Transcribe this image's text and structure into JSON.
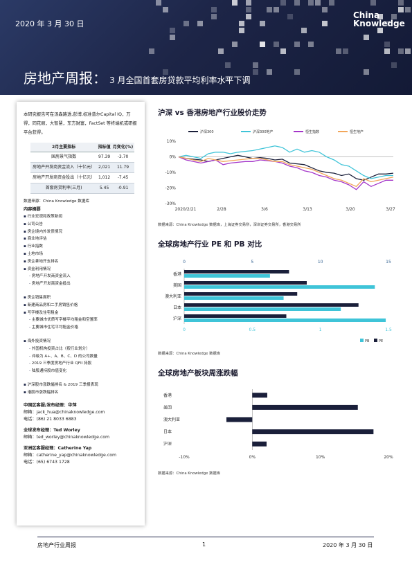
{
  "banner": {
    "date": "2020 年 3 月 30 日",
    "logo_line1": "China",
    "logo_line2": "Knowledge",
    "title_main": "房地产周报：",
    "title_sub": "3 月全国首套房贷款平均利率水平下调"
  },
  "sidebar": {
    "intro": "本研究报告可在汤森路透,彭博,标准普尔Capital IQ，万得，同花顺，大智慧，东方财富，FactSet 等终端机或研报平台获得。",
    "table": {
      "headers": [
        "2月主要指标",
        "指标值",
        "月变化(%)"
      ],
      "rows": [
        [
          "国房景气指数",
          "97.39",
          "-3.70"
        ],
        [
          "房地产开发商资金流入（十亿元）",
          "2,021",
          "11.79"
        ],
        [
          "房地产开发商资金投出（十亿元）",
          "1,012",
          "-7.45"
        ],
        [
          "首套房贷利率(三月)",
          "5.45",
          "-0.91"
        ]
      ]
    },
    "source": "数据来源：China Knowledge 数据库",
    "toc_title": "内容摘要",
    "toc": [
      {
        "text": "行业宏观和政策新闻",
        "type": "main"
      },
      {
        "text": "公司公告",
        "type": "main"
      },
      {
        "text": "房企境内外发债情况",
        "type": "main"
      },
      {
        "text": "商业地评估",
        "type": "main"
      },
      {
        "text": "行业指数",
        "type": "main"
      },
      {
        "text": "土地市场",
        "type": "main"
      },
      {
        "text": "房企拿地开支排名",
        "type": "main"
      },
      {
        "text": "资金利用情况",
        "type": "main"
      },
      {
        "text": "房地产开发商资金流入",
        "type": "sub"
      },
      {
        "text": "房地产开发商资金投出",
        "type": "sub"
      },
      {
        "text": "房企销售面积",
        "type": "main gap"
      },
      {
        "text": "新建商品房和二手房销售价格",
        "type": "main"
      },
      {
        "text": "写字楼及住宅租金",
        "type": "main"
      },
      {
        "text": "主要城市优质写字楼平均租金和空置率",
        "type": "sub"
      },
      {
        "text": "主要城市住宅平均租金价格",
        "type": "sub"
      },
      {
        "text": "海外投资情况",
        "type": "main gap"
      },
      {
        "text": "外国机构投资占比（按行业划分）",
        "type": "sub"
      },
      {
        "text": "评级为 A+、A、B、C、D 的公司数量",
        "type": "sub"
      },
      {
        "text": "2019 三季度房地产行业 QFII 持股",
        "type": "sub"
      },
      {
        "text": "陆股通持股市值变化",
        "type": "sub"
      },
      {
        "text": "沪深股市涨跌幅排名 & 2019 三季报表现",
        "type": "main gap"
      },
      {
        "text": "港股市涨跌幅排名",
        "type": "main"
      }
    ],
    "contacts": [
      {
        "title": "中国区客服/发布经理：华萍",
        "lines": [
          "邮箱：jack_hua@chinaknowledge.com",
          "电话：(86) 21 8033 6883"
        ]
      },
      {
        "title": "全球发布经理：Ted Worley",
        "lines": [
          "邮箱：ted_worley@chinaknowledge.com"
        ]
      },
      {
        "title": "亚洲区客服经理：Catherine Yap",
        "lines": [
          "邮箱：catherine_yap@chinaknowledge.com",
          "电话：(65) 6743 1728"
        ]
      }
    ]
  },
  "section1": {
    "title": "沪深 vs 香港房地产行业股价走势",
    "source": "数据来源：China Knowledge 数据库，上海证券交易所，深圳证券交易所，香港交易所"
  },
  "section2": {
    "title": "全球房地产行业 PE 和 PB 对比",
    "source": "数据来源：China Knowledge 数据库"
  },
  "section3": {
    "title": "全球房地产板块周涨跌幅",
    "source": "数据来源：China Knowledge 数据库"
  },
  "footer": {
    "left": "房地产行业周报",
    "page": "1",
    "right": "2020 年 3 月 30 日"
  },
  "colors": {
    "navy": "#1d2547",
    "cyan": "#3fc4d8",
    "purple": "#a435c9",
    "orange": "#f2a65a",
    "dark": "#1a1f3a"
  },
  "chart_data": [
    {
      "type": "line",
      "legend": [
        "沪深300",
        "沪深300地产",
        "恒生指数",
        "恒生地产"
      ],
      "x_ticks": [
        "2020/2/21",
        "2/28",
        "3/6",
        "3/13",
        "3/20",
        "3/27"
      ],
      "ylim": [
        -30,
        10
      ],
      "y_ticks": [
        "10%",
        "0%",
        "-10%",
        "-20%",
        "-30%"
      ],
      "series": [
        {
          "name": "沪深300",
          "values": [
            0,
            -1,
            -1.5,
            -2,
            -3,
            -2,
            -1,
            0,
            1,
            0,
            -1,
            -0.5,
            -1,
            -2,
            -1.5,
            -4,
            -4.5,
            -5,
            -7,
            -9,
            -10,
            -10.5,
            -12,
            -11,
            -14,
            -15,
            -13,
            -11,
            -11,
            -10.5
          ]
        },
        {
          "name": "沪深300地产",
          "values": [
            0,
            1,
            0,
            -1,
            2,
            3,
            3,
            2,
            3,
            3.5,
            4,
            5,
            6,
            7,
            6,
            3,
            5,
            3,
            4,
            3,
            0,
            -2,
            -5,
            -6,
            -9,
            -12,
            -14,
            -13,
            -12,
            -12
          ]
        },
        {
          "name": "恒生指数",
          "values": [
            0,
            -2,
            -3,
            -4,
            -3,
            -2,
            -5,
            -4,
            -3.5,
            -3,
            -3,
            -2,
            -2.5,
            -3,
            -4,
            -6,
            -7,
            -9,
            -10,
            -12,
            -13,
            -15,
            -16,
            -18,
            -21,
            -16,
            -19,
            -17,
            -15,
            -15
          ]
        },
        {
          "name": "恒生地产",
          "values": [
            0,
            -1,
            -2,
            -3,
            -1,
            -2,
            -3,
            -2.5,
            -2,
            -1.5,
            -1,
            -1,
            -2,
            -3,
            -3,
            -5,
            -6,
            -7,
            -8,
            -10,
            -12,
            -14,
            -15,
            -17,
            -19,
            -14,
            -16,
            -15,
            -14,
            -13
          ]
        }
      ]
    },
    {
      "type": "bar",
      "orientation": "horizontal",
      "categories": [
        "香港",
        "美国",
        "澳大利亚",
        "日本",
        "沪深"
      ],
      "series": [
        {
          "name": "PB",
          "values": [
            0.63,
            1.4,
            0.73,
            1.15,
            1.48
          ]
        },
        {
          "name": "PE",
          "values": [
            7.7,
            9.0,
            8.3,
            12.8,
            7.5
          ]
        }
      ],
      "x_ticks_top": [
        "0",
        "5",
        "10",
        "15"
      ],
      "x_ticks_bottom": [
        "0",
        "0.5",
        "1",
        "1.5"
      ],
      "legend": [
        "PB",
        "PE"
      ]
    },
    {
      "type": "bar",
      "orientation": "horizontal",
      "categories": [
        "香港",
        "美国",
        "澳大利亚",
        "日本",
        "沪深"
      ],
      "values": [
        2.2,
        15.5,
        -3.8,
        17.8,
        2.1
      ],
      "xlim": [
        -10,
        20
      ],
      "x_ticks": [
        "-10%",
        "0%",
        "10%",
        "20%"
      ]
    }
  ]
}
